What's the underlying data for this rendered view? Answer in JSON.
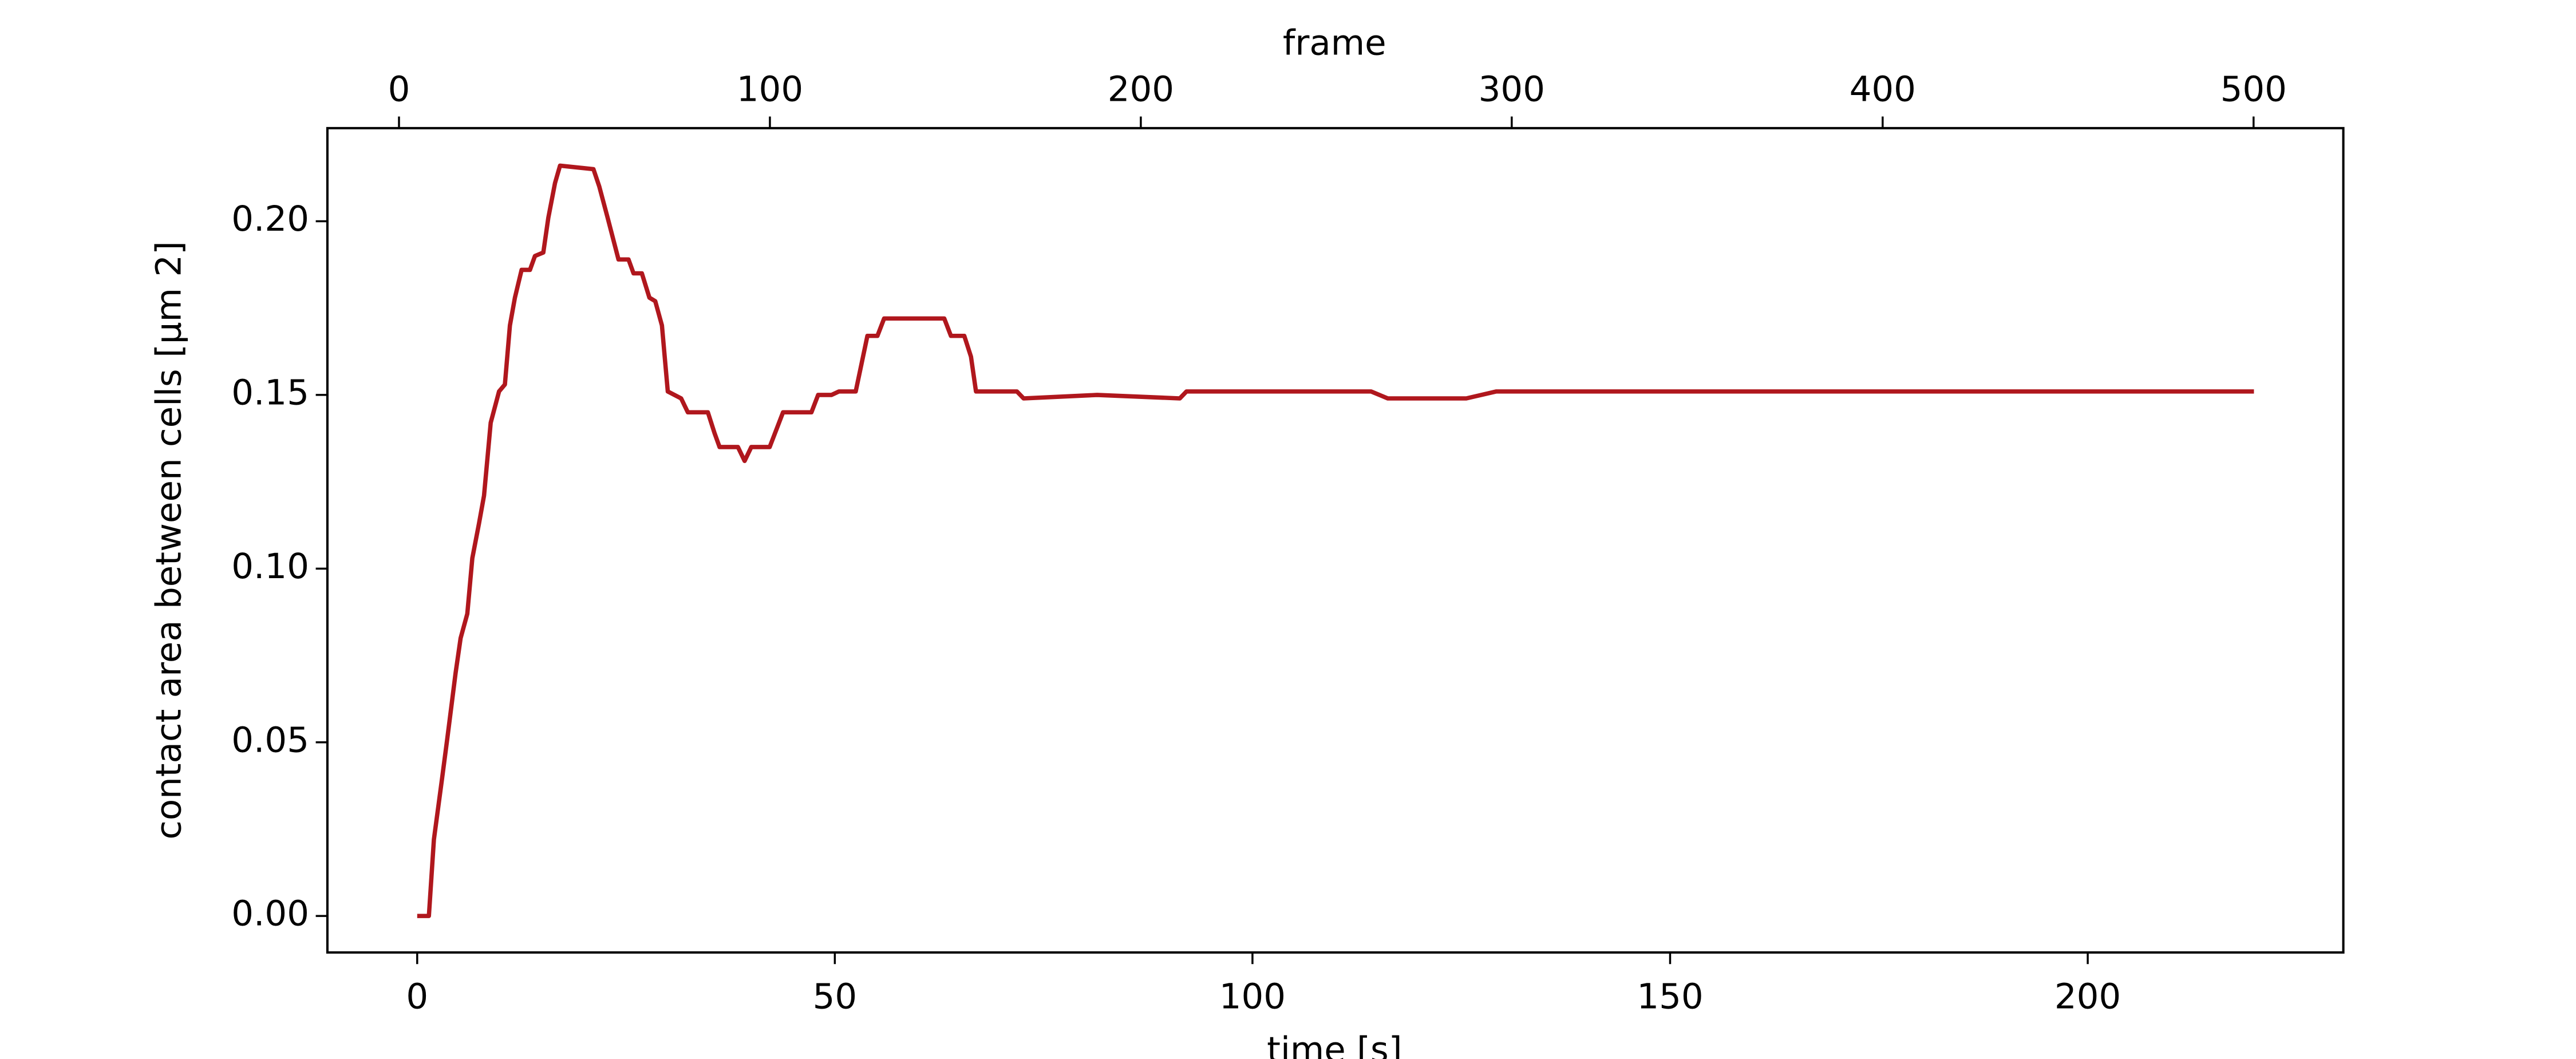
{
  "chart_data": {
    "type": "line",
    "xlabel": "time [s]",
    "x2label": "frame",
    "ylabel": "contact area between cells [μm 2]",
    "color": "#b0171d",
    "x": [
      0,
      1.4,
      2.0,
      3.0,
      3.6,
      4.6,
      5.2,
      6.0,
      6.6,
      7.4,
      8.0,
      8.8,
      9.8,
      10.5,
      11.1,
      11.7,
      12.5,
      13.5,
      14.1,
      15.1,
      15.7,
      16.5,
      17.1,
      21.1,
      21.8,
      22.8,
      24.1,
      25.3,
      25.9,
      26.9,
      27.8,
      28.5,
      29.3,
      30.0,
      31.6,
      32.4,
      34.8,
      35.6,
      36.2,
      38.4,
      39.2,
      40.0,
      42.2,
      43.0,
      43.8,
      47.2,
      48.0,
      49.6,
      50.5,
      52.5,
      53.9,
      55.1,
      55.9,
      63.1,
      63.9,
      65.5,
      66.3,
      66.9,
      71.8,
      72.6,
      81.4,
      91.3,
      92.1,
      114.2,
      116.2,
      125.6,
      129.2,
      219.9
    ],
    "values": [
      0,
      0,
      0.022,
      0.04,
      0.051,
      0.07,
      0.08,
      0.087,
      0.103,
      0.113,
      0.121,
      0.142,
      0.151,
      0.153,
      0.17,
      0.178,
      0.186,
      0.186,
      0.19,
      0.191,
      0.201,
      0.211,
      0.216,
      0.215,
      0.21,
      0.201,
      0.189,
      0.189,
      0.185,
      0.185,
      0.178,
      0.177,
      0.17,
      0.151,
      0.149,
      0.145,
      0.145,
      0.139,
      0.135,
      0.135,
      0.131,
      0.135,
      0.135,
      0.14,
      0.145,
      0.145,
      0.15,
      0.15,
      0.151,
      0.151,
      0.167,
      0.167,
      0.172,
      0.172,
      0.167,
      0.167,
      0.161,
      0.151,
      0.151,
      0.149,
      0.15,
      0.149,
      0.151,
      0.151,
      0.149,
      0.149,
      0.151,
      0.151
    ],
    "xlim": [
      -10.75,
      230.6
    ],
    "xticks": [
      0,
      50,
      100,
      150,
      200
    ],
    "x2lim": [
      -19.3,
      524.2
    ],
    "x2ticks": [
      0,
      100,
      200,
      300,
      400,
      500
    ],
    "ylim": [
      -0.0105,
      0.2268
    ],
    "yticks": [
      {
        "value": 0,
        "label": "0.00"
      },
      0.05,
      {
        "value": 0.1,
        "label": "0.10"
      },
      0.15,
      {
        "value": 0.2,
        "label": "0.20"
      }
    ]
  }
}
